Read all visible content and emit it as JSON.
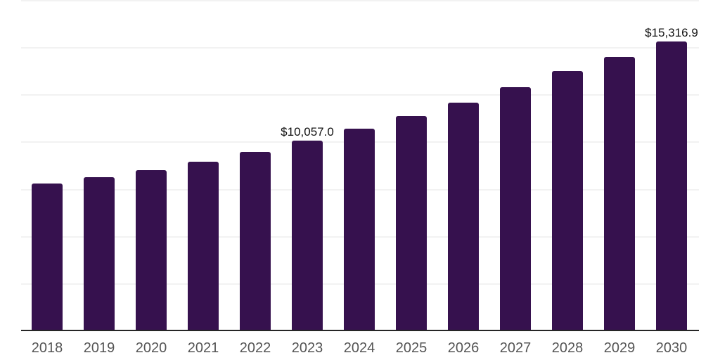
{
  "chart_data": {
    "type": "bar",
    "categories": [
      "2018",
      "2019",
      "2020",
      "2021",
      "2022",
      "2023",
      "2024",
      "2025",
      "2026",
      "2027",
      "2028",
      "2029",
      "2030"
    ],
    "values": [
      7780,
      8115,
      8490,
      8935,
      9460,
      10057.0,
      10680,
      11350,
      12070,
      12870,
      13740,
      14490,
      15316.9
    ],
    "data_labels": [
      null,
      null,
      null,
      null,
      null,
      "$10,057.0",
      null,
      null,
      null,
      null,
      null,
      null,
      "$15,316.9"
    ],
    "title": "",
    "xlabel": "",
    "ylabel": "",
    "ylim": [
      0,
      17500
    ],
    "grid": true,
    "gridline_values": [
      2500,
      5000,
      7500,
      10000,
      12500,
      15000,
      17500
    ],
    "legend": "none",
    "colors": {
      "bar": "#36114E",
      "gridline": "#f2f2f2",
      "axis_line": "#262626",
      "tick_label": "#555555",
      "data_label": "#111111",
      "background": "#ffffff"
    }
  }
}
